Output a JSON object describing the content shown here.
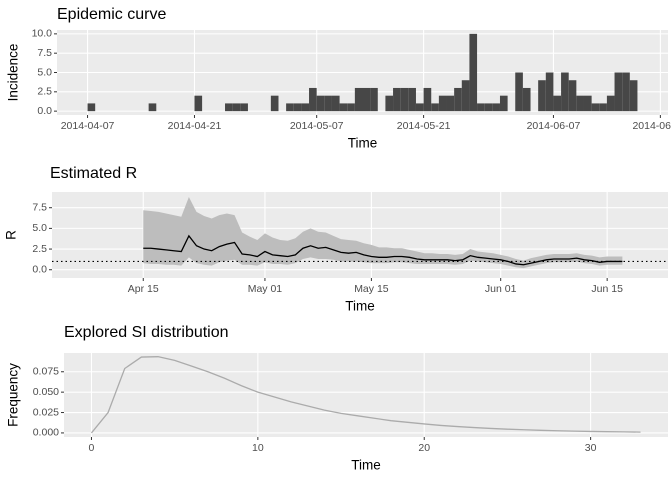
{
  "chart_data": [
    {
      "type": "bar",
      "title": "Epidemic curve",
      "xlabel": "Time",
      "ylabel": "Incidence",
      "color": "#474747",
      "grid": true,
      "x": [
        "2014-04-07",
        "2014-04-15",
        "2014-04-21",
        "2014-04-25",
        "2014-04-26",
        "2014-04-27",
        "2014-05-01",
        "2014-05-03",
        "2014-05-04",
        "2014-05-05",
        "2014-05-06",
        "2014-05-07",
        "2014-05-08",
        "2014-05-09",
        "2014-05-10",
        "2014-05-11",
        "2014-05-12",
        "2014-05-13",
        "2014-05-14",
        "2014-05-16",
        "2014-05-17",
        "2014-05-18",
        "2014-05-19",
        "2014-05-20",
        "2014-05-21",
        "2014-05-22",
        "2014-05-23",
        "2014-05-24",
        "2014-05-25",
        "2014-05-26",
        "2014-05-27",
        "2014-05-28",
        "2014-05-29",
        "2014-05-30",
        "2014-05-31",
        "2014-06-02",
        "2014-06-03",
        "2014-06-05",
        "2014-06-06",
        "2014-06-07",
        "2014-06-08",
        "2014-06-09",
        "2014-06-10",
        "2014-06-11",
        "2014-06-12",
        "2014-06-13",
        "2014-06-14",
        "2014-06-15",
        "2014-06-16",
        "2014-06-17"
      ],
      "values": [
        1,
        1,
        2,
        1,
        1,
        1,
        2,
        1,
        1,
        1,
        3,
        2,
        2,
        2,
        1,
        1,
        3,
        3,
        3,
        2,
        3,
        3,
        3,
        1,
        3,
        1,
        2,
        2,
        3,
        4,
        10,
        1,
        1,
        1,
        2,
        5,
        3,
        4,
        5,
        2,
        5,
        4,
        2,
        2,
        1,
        1,
        2,
        5,
        5,
        4
      ],
      "xlim": [
        "2014-04-03",
        "2014-06-22"
      ],
      "xticks": [
        "2014-04-07",
        "2014-04-21",
        "2014-05-07",
        "2014-05-21",
        "2014-06-07",
        {
          "value": "2014-06-21",
          "label": "2014-06"
        }
      ],
      "ylim": [
        -0.5,
        10.5
      ],
      "yticks": [
        {
          "value": 0,
          "label": "0.0"
        },
        {
          "value": 2.5,
          "label": "2.5"
        },
        {
          "value": 5,
          "label": "5.0"
        },
        {
          "value": 7.5,
          "label": "7.5"
        },
        {
          "value": 10,
          "label": "10.0"
        }
      ]
    },
    {
      "type": "line",
      "title": "Estimated R",
      "xlabel": "Time",
      "ylabel": "R",
      "color": "#000000",
      "band_color": "#BDBDBD",
      "grid": true,
      "hline": 1,
      "x": [
        "04-15",
        "04-16",
        "04-17",
        "04-18",
        "04-19",
        "04-20",
        "04-21",
        "04-22",
        "04-23",
        "04-24",
        "04-25",
        "04-26",
        "04-27",
        "04-28",
        "04-29",
        "04-30",
        "05-01",
        "05-02",
        "05-03",
        "05-04",
        "05-05",
        "05-06",
        "05-07",
        "05-08",
        "05-09",
        "05-10",
        "05-11",
        "05-12",
        "05-13",
        "05-14",
        "05-15",
        "05-16",
        "05-17",
        "05-18",
        "05-19",
        "05-20",
        "05-21",
        "05-22",
        "05-23",
        "05-24",
        "05-25",
        "05-26",
        "05-27",
        "05-28",
        "05-29",
        "05-30",
        "05-31",
        "06-01",
        "06-02",
        "06-03",
        "06-04",
        "06-05",
        "06-06",
        "06-07",
        "06-08",
        "06-09",
        "06-10",
        "06-11",
        "06-12",
        "06-13",
        "06-14",
        "06-15",
        "06-16",
        "06-17"
      ],
      "values": [
        2.6,
        2.6,
        2.5,
        2.4,
        2.3,
        2.2,
        4.1,
        2.9,
        2.5,
        2.3,
        2.8,
        3.1,
        3.3,
        1.9,
        1.8,
        1.6,
        2.2,
        1.8,
        1.7,
        1.6,
        1.8,
        2.6,
        2.9,
        2.6,
        2.7,
        2.4,
        2.1,
        2.0,
        2.1,
        1.8,
        1.6,
        1.5,
        1.5,
        1.6,
        1.6,
        1.5,
        1.3,
        1.2,
        1.2,
        1.2,
        1.2,
        1.1,
        1.2,
        1.7,
        1.5,
        1.4,
        1.3,
        1.2,
        1.0,
        0.7,
        0.6,
        0.8,
        1.0,
        1.2,
        1.3,
        1.3,
        1.3,
        1.4,
        1.2,
        1.1,
        0.9,
        1.0,
        1.0,
        1.0
      ],
      "lower": [
        0.8,
        0.7,
        0.7,
        0.6,
        0.6,
        0.5,
        1.5,
        0.8,
        0.6,
        0.5,
        0.9,
        1.1,
        1.2,
        0.6,
        0.6,
        0.5,
        0.9,
        0.7,
        0.7,
        0.6,
        0.8,
        1.3,
        1.5,
        1.3,
        1.3,
        1.2,
        1.0,
        1.0,
        1.0,
        0.9,
        0.8,
        0.8,
        0.8,
        0.9,
        0.9,
        0.8,
        0.7,
        0.7,
        0.7,
        0.7,
        0.7,
        0.6,
        0.7,
        1.1,
        1.0,
        0.9,
        0.8,
        0.7,
        0.5,
        0.3,
        0.2,
        0.4,
        0.6,
        0.8,
        0.9,
        0.9,
        0.9,
        1.0,
        0.8,
        0.7,
        0.5,
        0.6,
        0.6,
        0.6
      ],
      "upper": [
        7.2,
        7.1,
        7.0,
        6.8,
        6.6,
        6.4,
        8.8,
        7.0,
        6.5,
        6.2,
        6.6,
        6.8,
        6.6,
        4.5,
        4.0,
        3.6,
        4.4,
        3.9,
        3.6,
        3.5,
        3.8,
        4.6,
        5.0,
        4.6,
        4.5,
        4.1,
        3.7,
        3.6,
        3.5,
        3.2,
        3.0,
        2.7,
        2.7,
        2.6,
        2.6,
        2.4,
        2.2,
        2.0,
        2.0,
        1.9,
        1.9,
        1.8,
        1.9,
        2.5,
        2.2,
        2.1,
        2.0,
        1.8,
        1.6,
        1.3,
        1.1,
        1.4,
        1.6,
        1.8,
        1.9,
        1.9,
        1.9,
        2.0,
        1.8,
        1.7,
        1.5,
        1.6,
        1.6,
        1.6
      ],
      "xlim": [
        "04-03",
        "06-23"
      ],
      "xticks": [
        {
          "value": "04-15",
          "label": "Apr 15"
        },
        {
          "value": "05-01",
          "label": "May 01"
        },
        {
          "value": "05-15",
          "label": "May 15"
        },
        {
          "value": "06-01",
          "label": "Jun 01"
        },
        {
          "value": "06-15",
          "label": "Jun 15"
        }
      ],
      "ylim": [
        -1,
        9.4
      ],
      "yticks": [
        {
          "value": 0,
          "label": "0.0"
        },
        {
          "value": 2.5,
          "label": "2.5"
        },
        {
          "value": 5,
          "label": "5.0"
        },
        {
          "value": 7.5,
          "label": "7.5"
        }
      ]
    },
    {
      "type": "line",
      "title": "Explored SI distribution",
      "xlabel": "Time",
      "ylabel": "Frequency",
      "color": "#ABABAB",
      "grid": true,
      "x": [
        0,
        1,
        2,
        3,
        4,
        5,
        6,
        7,
        8,
        9,
        10,
        11,
        12,
        13,
        14,
        15,
        16,
        17,
        18,
        19,
        20,
        21,
        22,
        23,
        24,
        25,
        26,
        27,
        28,
        29,
        30,
        31,
        32,
        33
      ],
      "values": [
        0,
        0.025,
        0.079,
        0.093,
        0.0935,
        0.089,
        0.082,
        0.075,
        0.067,
        0.058,
        0.05,
        0.044,
        0.038,
        0.033,
        0.028,
        0.024,
        0.021,
        0.018,
        0.015,
        0.013,
        0.011,
        0.0092,
        0.0078,
        0.0066,
        0.0055,
        0.0046,
        0.0039,
        0.0032,
        0.0027,
        0.0022,
        0.0018,
        0.0015,
        0.0013,
        0.001
      ],
      "xlim": [
        -1.65,
        34.65
      ],
      "xticks": [
        0,
        10,
        20,
        30
      ],
      "ylim": [
        -0.005,
        0.098
      ],
      "yticks": [
        {
          "value": 0,
          "label": "0.000"
        },
        {
          "value": 0.025,
          "label": "0.025"
        },
        {
          "value": 0.05,
          "label": "0.050"
        },
        {
          "value": 0.075,
          "label": "0.075"
        }
      ]
    }
  ]
}
